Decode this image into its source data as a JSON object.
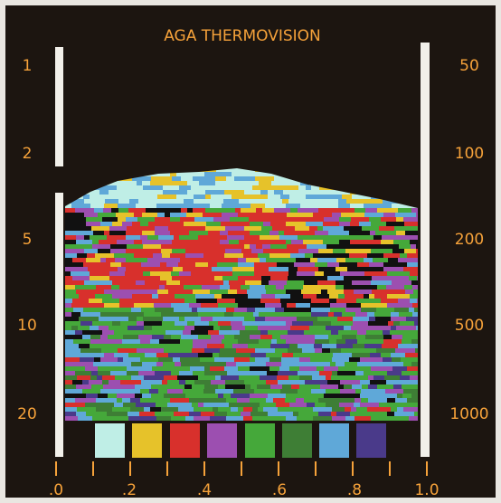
{
  "title": "AGA THERMOVISION",
  "left_scale": [
    "1",
    "2",
    "5",
    "10",
    "20"
  ],
  "right_scale": [
    "50",
    "100",
    "200",
    "500",
    "1000"
  ],
  "bottom_scale": [
    ".0",
    ".2",
    ".4",
    ".6",
    ".8",
    "1.0"
  ]
}
